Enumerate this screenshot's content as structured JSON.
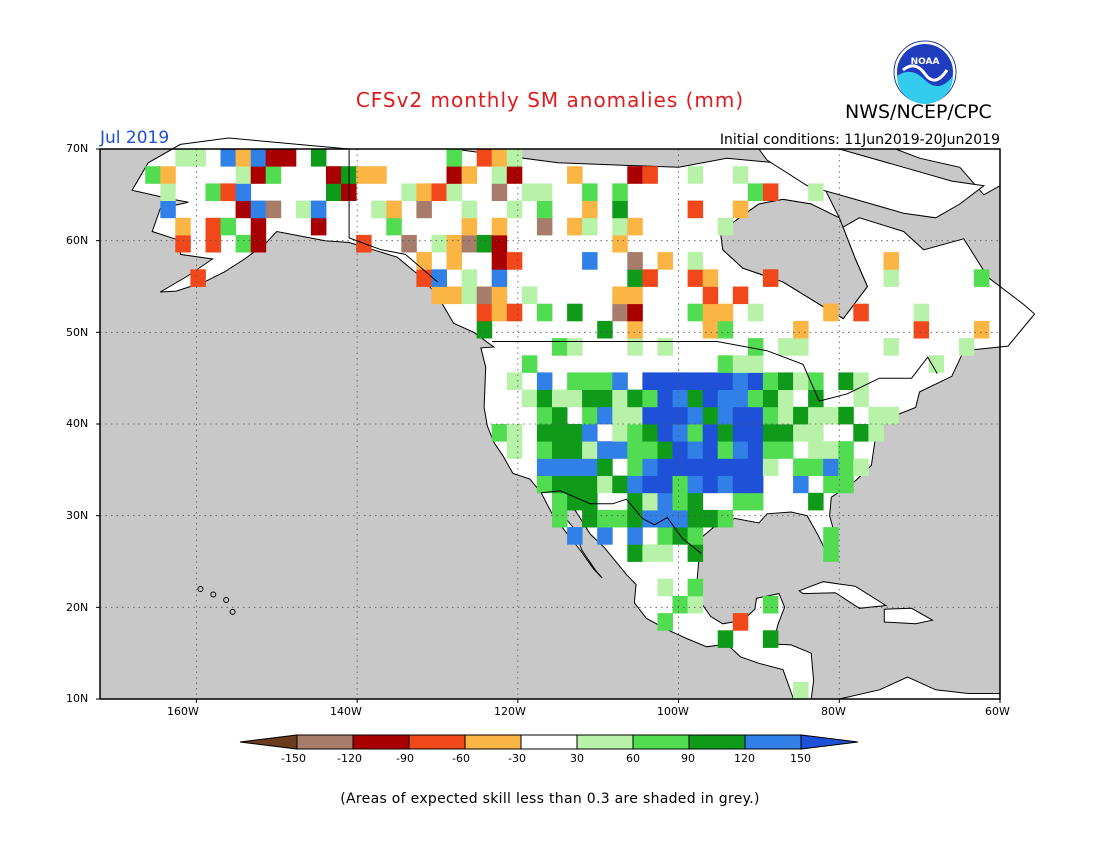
{
  "title": "CFSv2 monthly SM anomalies (mm)",
  "agency": "NWS/NCEP/CPC",
  "logo_text": "NOAA",
  "month": "Jul 2019",
  "initial_conditions": "Initial conditions: 11Jun2019-20Jun2019",
  "footnote": "(Areas of expected skill less than 0.3 are shaded in grey.)",
  "map": {
    "projection": "equirectangular",
    "lon_range": [
      -172,
      -60
    ],
    "lat_range": [
      10,
      70
    ],
    "lat_labels": [
      "70N",
      "60N",
      "50N",
      "40N",
      "30N",
      "20N",
      "10N"
    ],
    "lon_labels": [
      "160W",
      "140W",
      "120W",
      "100W",
      "80W",
      "60W"
    ],
    "grid": "dotted",
    "ocean_color": "#c8c8c8"
  },
  "colorbar": {
    "labels": [
      "-150",
      "-120",
      "-90",
      "-60",
      "-30",
      "30",
      "60",
      "90",
      "120",
      "150"
    ],
    "colors": [
      "#6b3b1f",
      "#a87c6b",
      "#a80000",
      "#f0481a",
      "#fbb545",
      "#ffffff",
      "#b8f2a8",
      "#52dc52",
      "#0f9a1a",
      "#3080e8",
      "#1e50d8"
    ]
  }
}
